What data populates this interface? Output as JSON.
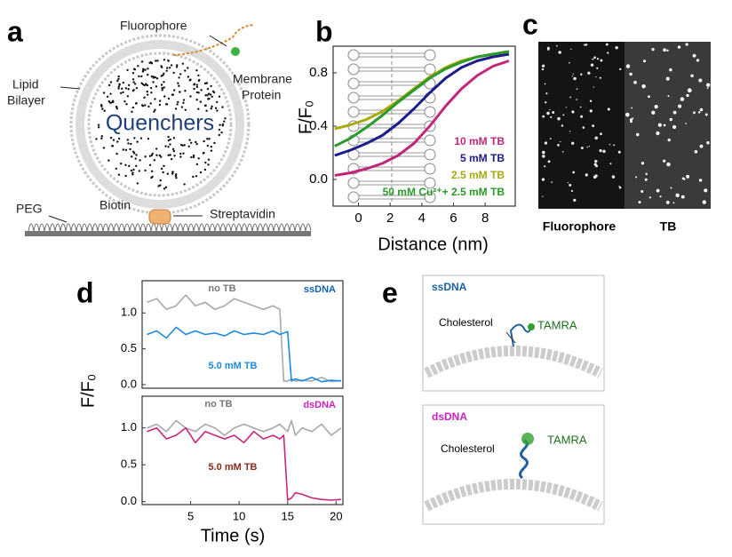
{
  "panel_letters": [
    "a",
    "b",
    "c",
    "d",
    "e"
  ],
  "diagram_a": {
    "fluorophore": "Fluorophore",
    "membrane_protein": [
      "Membrane",
      "Protein"
    ],
    "lipid_bilayer": [
      "Lipid",
      "Bilayer"
    ],
    "quenchers": "Quenchers",
    "peg": "PEG",
    "biotin": "Biotin",
    "streptavidin": "Streptavidin"
  },
  "image_c": {
    "left_label": "Fluorophore",
    "right_label": "TB"
  },
  "panel_d": {
    "xlabel": "Time (s)",
    "ylabel": "F/F₀"
  },
  "diagram_e": {
    "top": {
      "title": "ssDNA",
      "cholesterol": "Cholesterol",
      "dye": "TAMRA"
    },
    "bottom": {
      "title": "dsDNA",
      "cholesterol": "Cholesterol",
      "dye": "TAMRA"
    }
  },
  "chart_data": [
    {
      "type": "line",
      "xlabel": "Distance (nm)",
      "ylabel": "F/F₀",
      "x": [
        -1.5,
        -0.5,
        0.5,
        1.5,
        2.5,
        3.5,
        4.5,
        5.5,
        6.5,
        7.5,
        8.5,
        9.5
      ],
      "xlim": [
        -1.6,
        9.9
      ],
      "ylim": [
        -0.2,
        1.0
      ],
      "xticks": [
        0,
        2,
        4,
        6,
        8
      ],
      "yticks": [
        {
          "value": 0,
          "label": "0.0"
        },
        0.4,
        0.8
      ],
      "legend": "lower right",
      "series": [
        {
          "name": "10 mM TB",
          "color": "#c2267a",
          "values": [
            0.03,
            0.05,
            0.08,
            0.12,
            0.18,
            0.27,
            0.4,
            0.55,
            0.68,
            0.78,
            0.85,
            0.89
          ]
        },
        {
          "name": "5 mM TB",
          "color": "#1c1c8c",
          "values": [
            0.18,
            0.22,
            0.27,
            0.33,
            0.42,
            0.53,
            0.65,
            0.76,
            0.84,
            0.89,
            0.92,
            0.94
          ]
        },
        {
          "name": "2.5 mM TB",
          "color": "#a8a810",
          "values": [
            0.38,
            0.41,
            0.45,
            0.51,
            0.59,
            0.68,
            0.77,
            0.84,
            0.89,
            0.92,
            0.94,
            0.96
          ]
        },
        {
          "name": "50 mM Cu²⁺+ 2.5 mM TB",
          "color": "#2a9a2a",
          "values": [
            0.25,
            0.31,
            0.39,
            0.48,
            0.58,
            0.67,
            0.76,
            0.83,
            0.88,
            0.92,
            0.94,
            0.96
          ]
        }
      ]
    },
    {
      "type": "line",
      "title": "ssDNA",
      "title_color": "#1060b0",
      "x": [
        0.5,
        1.5,
        2.5,
        3.5,
        4.5,
        5.5,
        6.5,
        7.5,
        8.5,
        9.5,
        10.5,
        11.5,
        12.5,
        13.5,
        14.2,
        14.6,
        15.0,
        15.4,
        15.8,
        16.5,
        17.5,
        18.5,
        19.5,
        20.5
      ],
      "xlim": [
        0,
        20.7
      ],
      "ylim": [
        -0.05,
        1.45
      ],
      "yticks": [
        {
          "value": 0,
          "label": "0.0"
        },
        0.5,
        {
          "value": 1,
          "label": "1.0"
        }
      ],
      "series": [
        {
          "name": "no TB",
          "color": "#a8a8a8",
          "values": [
            1.15,
            1.2,
            1.05,
            1.1,
            1.25,
            1.1,
            1.15,
            1.05,
            1.1,
            1.2,
            1.15,
            1.1,
            1.05,
            1.1,
            1.05,
            0.05,
            0.05,
            0.08,
            0.05,
            0.06,
            0.05,
            0.1,
            0.04,
            0.06
          ]
        },
        {
          "name": "5.0 mM TB",
          "color": "#1a8ae0",
          "values": [
            0.7,
            0.75,
            0.65,
            0.8,
            0.7,
            0.75,
            0.7,
            0.72,
            0.68,
            0.75,
            0.7,
            0.72,
            0.7,
            0.75,
            0.7,
            0.72,
            0.74,
            0.05,
            0.08,
            0.05,
            0.1,
            0.04,
            0.06,
            0.05
          ]
        }
      ]
    },
    {
      "type": "line",
      "title": "dsDNA",
      "title_color": "#d020c0",
      "x": [
        0.5,
        1.5,
        2.5,
        3.5,
        4.5,
        5.5,
        6.5,
        7.5,
        8.5,
        9.5,
        10.5,
        11.5,
        12.5,
        13.5,
        14.2,
        14.6,
        15.0,
        15.4,
        15.8,
        16.5,
        17.5,
        18.5,
        19.5,
        20.5
      ],
      "xlim": [
        0,
        20.7
      ],
      "ylim": [
        -0.04,
        1.43
      ],
      "xticks": [
        5,
        10,
        15,
        20
      ],
      "yticks": [
        {
          "value": 0,
          "label": "0.0"
        },
        0.5,
        {
          "value": 1,
          "label": "1.0"
        }
      ],
      "series": [
        {
          "name": "no TB",
          "color": "#a8a8a8",
          "values": [
            1.0,
            1.05,
            0.95,
            1.1,
            1.0,
            0.95,
            1.05,
            1.0,
            0.9,
            1.0,
            1.05,
            1.0,
            0.95,
            1.0,
            1.05,
            1.0,
            0.95,
            1.1,
            0.9,
            1.0,
            0.95,
            1.05,
            0.9,
            1.0
          ]
        },
        {
          "name": "5.0 mM TB",
          "color": "#c8267a",
          "label_color": "#8a2a1a",
          "values": [
            0.95,
            1.0,
            0.85,
            0.9,
            1.0,
            0.8,
            0.95,
            0.9,
            0.85,
            0.9,
            0.8,
            0.95,
            0.85,
            0.9,
            0.85,
            0.9,
            0.02,
            0.05,
            0.12,
            0.1,
            0.05,
            0.03,
            0.02,
            0.03
          ]
        }
      ]
    }
  ]
}
